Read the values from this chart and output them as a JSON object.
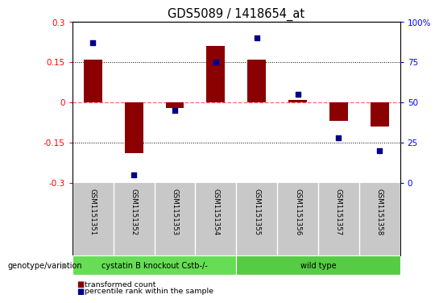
{
  "title": "GDS5089 / 1418654_at",
  "samples": [
    "GSM1151351",
    "GSM1151352",
    "GSM1151353",
    "GSM1151354",
    "GSM1151355",
    "GSM1151356",
    "GSM1151357",
    "GSM1151358"
  ],
  "bar_values": [
    0.16,
    -0.19,
    -0.02,
    0.21,
    0.16,
    0.01,
    -0.07,
    -0.09
  ],
  "dot_values": [
    87,
    5,
    45,
    75,
    90,
    55,
    28,
    20
  ],
  "ylim": [
    -0.3,
    0.3
  ],
  "yticks_left": [
    -0.3,
    -0.15,
    0,
    0.15,
    0.3
  ],
  "yticks_right": [
    0,
    25,
    50,
    75,
    100
  ],
  "bar_color": "#8B0000",
  "dot_color": "#00008B",
  "zero_line_color": "#FF6666",
  "grid_color": "black",
  "groups": [
    {
      "label": "cystatin B knockout Cstb-/-",
      "start": 0,
      "end": 4,
      "color": "#66DD55"
    },
    {
      "label": "wild type",
      "start": 4,
      "end": 8,
      "color": "#55CC44"
    }
  ],
  "genotype_label": "genotype/variation",
  "legend_bar_label": "transformed count",
  "legend_dot_label": "percentile rank within the sample",
  "background_color": "#FFFFFF",
  "plot_bg_color": "#FFFFFF",
  "sample_bg_color": "#C8C8C8",
  "sample_divider_color": "#AAAAAA"
}
